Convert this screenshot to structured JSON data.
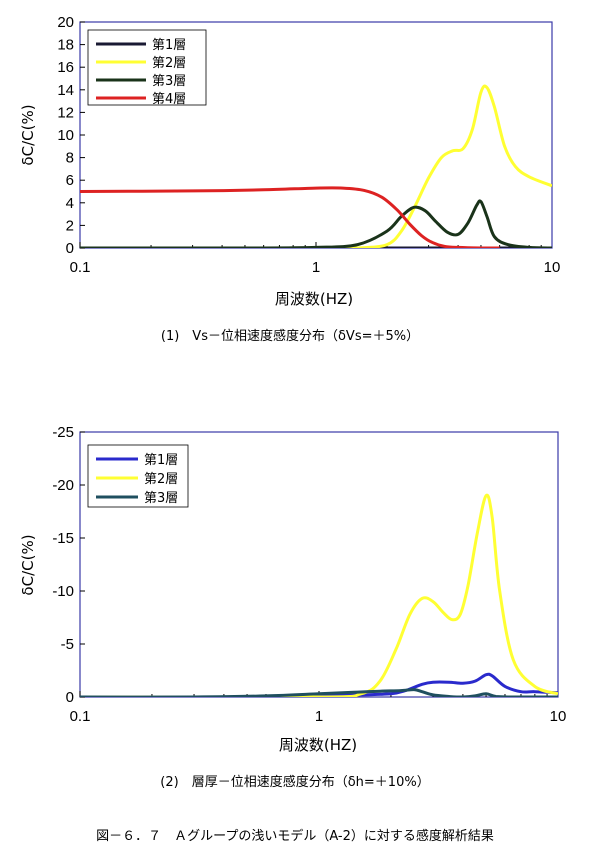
{
  "chart_data": [
    {
      "type": "line",
      "x_scale": "log",
      "xlim": [
        0.1,
        10
      ],
      "ylim": [
        0,
        20
      ],
      "y_ticks": [
        0,
        2,
        4,
        6,
        8,
        10,
        12,
        14,
        16,
        18,
        20
      ],
      "y_tick_labels": [
        "0",
        "2",
        "4",
        "6",
        "8",
        "10",
        "12",
        "14",
        "16",
        "18",
        "20"
      ],
      "x_ticks": [
        0.1,
        1,
        10
      ],
      "x_tick_labels": [
        "0.1",
        "1",
        "10"
      ],
      "xlabel": "周波数(HZ)",
      "ylabel": "δC/C(%)",
      "caption": "(1)　Vs－位相速度感度分布（δVs=＋5%）",
      "legend_position": "top-left",
      "series": [
        {
          "name": "第1層",
          "color": "#1a1a33",
          "x": [
            0.1,
            1,
            2,
            3,
            5,
            10
          ],
          "y": [
            0,
            0,
            0,
            0,
            0,
            0
          ]
        },
        {
          "name": "第2層",
          "color": "#ffff33",
          "x": [
            0.1,
            1,
            1.5,
            2,
            2.3,
            2.6,
            3,
            3.4,
            3.8,
            4.2,
            4.6,
            5,
            5.3,
            5.7,
            6.3,
            7,
            8,
            10
          ],
          "y": [
            0,
            0,
            0,
            0.3,
            1.5,
            3.5,
            6.2,
            8,
            8.6,
            8.8,
            10.5,
            13.8,
            14.2,
            12.5,
            9,
            7.2,
            6.3,
            5.5
          ]
        },
        {
          "name": "第3層",
          "color": "#1a331a",
          "x": [
            0.1,
            0.5,
            1,
            1.5,
            2,
            2.3,
            2.6,
            2.9,
            3.2,
            3.6,
            4,
            4.4,
            4.8,
            5,
            5.3,
            5.7,
            6.5,
            8,
            10
          ],
          "y": [
            0,
            0,
            0.05,
            0.3,
            1.5,
            2.8,
            3.6,
            3.3,
            2.4,
            1.4,
            1.2,
            2.2,
            3.8,
            4.1,
            2.8,
            1.0,
            0.3,
            0.05,
            0
          ]
        },
        {
          "name": "第4層",
          "color": "#dd2222",
          "x": [
            0.1,
            0.3,
            0.6,
            1,
            1.3,
            1.6,
            1.9,
            2.2,
            2.5,
            2.8,
            3.1,
            3.5,
            4,
            5,
            6
          ],
          "y": [
            5,
            5.05,
            5.15,
            5.3,
            5.3,
            5.1,
            4.5,
            3.4,
            2.1,
            1.1,
            0.5,
            0.15,
            0.05,
            0,
            0
          ]
        }
      ]
    },
    {
      "type": "line",
      "x_scale": "log",
      "xlim": [
        0.1,
        10
      ],
      "ylim": [
        -25,
        0
      ],
      "y_inverted": true,
      "y_ticks": [
        0,
        -5,
        -10,
        -15,
        -20,
        -25
      ],
      "y_tick_labels": [
        "0",
        "-5",
        "-10",
        "-15",
        "-20",
        "-25"
      ],
      "x_ticks": [
        0.1,
        1,
        10
      ],
      "x_tick_labels": [
        "0.1",
        "1",
        "10"
      ],
      "xlabel": "周波数(HZ)",
      "ylabel": "δC/C(%)",
      "caption": "(2)　層厚－位相速度感度分布（δh=＋10%）",
      "legend_position": "top-left",
      "series": [
        {
          "name": "第1層",
          "color": "#2a2acc",
          "x": [
            0.1,
            0.5,
            1,
            1.5,
            2,
            2.3,
            2.7,
            3,
            3.5,
            4,
            4.5,
            5,
            5.3,
            6,
            7,
            8,
            10
          ],
          "y": [
            0,
            0,
            -0.1,
            -0.2,
            -0.3,
            -0.6,
            -1.2,
            -1.4,
            -1.4,
            -1.3,
            -1.5,
            -2.1,
            -2.0,
            -1.0,
            -0.5,
            -0.5,
            -0.4
          ]
        },
        {
          "name": "第2層",
          "color": "#ffff33",
          "x": [
            0.1,
            1,
            1.5,
            1.8,
            2.1,
            2.4,
            2.7,
            3,
            3.3,
            3.6,
            3.9,
            4.2,
            4.6,
            5,
            5.3,
            5.7,
            6.5,
            8,
            10
          ],
          "y": [
            0,
            0,
            -0.3,
            -1.5,
            -4.5,
            -7.8,
            -9.3,
            -9.0,
            -8.0,
            -7.3,
            -7.8,
            -10.5,
            -15.5,
            -19.0,
            -17.0,
            -10.0,
            -3.5,
            -1.0,
            -0.3
          ]
        },
        {
          "name": "第3層",
          "color": "#1f4f5f",
          "x": [
            0.1,
            0.3,
            0.6,
            1,
            1.4,
            1.8,
            2.2,
            2.5,
            2.7,
            3,
            3.5,
            4,
            4.5,
            5,
            5.5,
            6.5,
            10
          ],
          "y": [
            0,
            0,
            -0.1,
            -0.3,
            -0.45,
            -0.55,
            -0.6,
            -0.7,
            -0.5,
            -0.2,
            -0.05,
            0,
            -0.1,
            -0.3,
            -0.05,
            0,
            0
          ]
        }
      ]
    }
  ],
  "figure_caption": "図－６．７　Ａグループの浅いモデル（A-2）に対する感度解析結果"
}
